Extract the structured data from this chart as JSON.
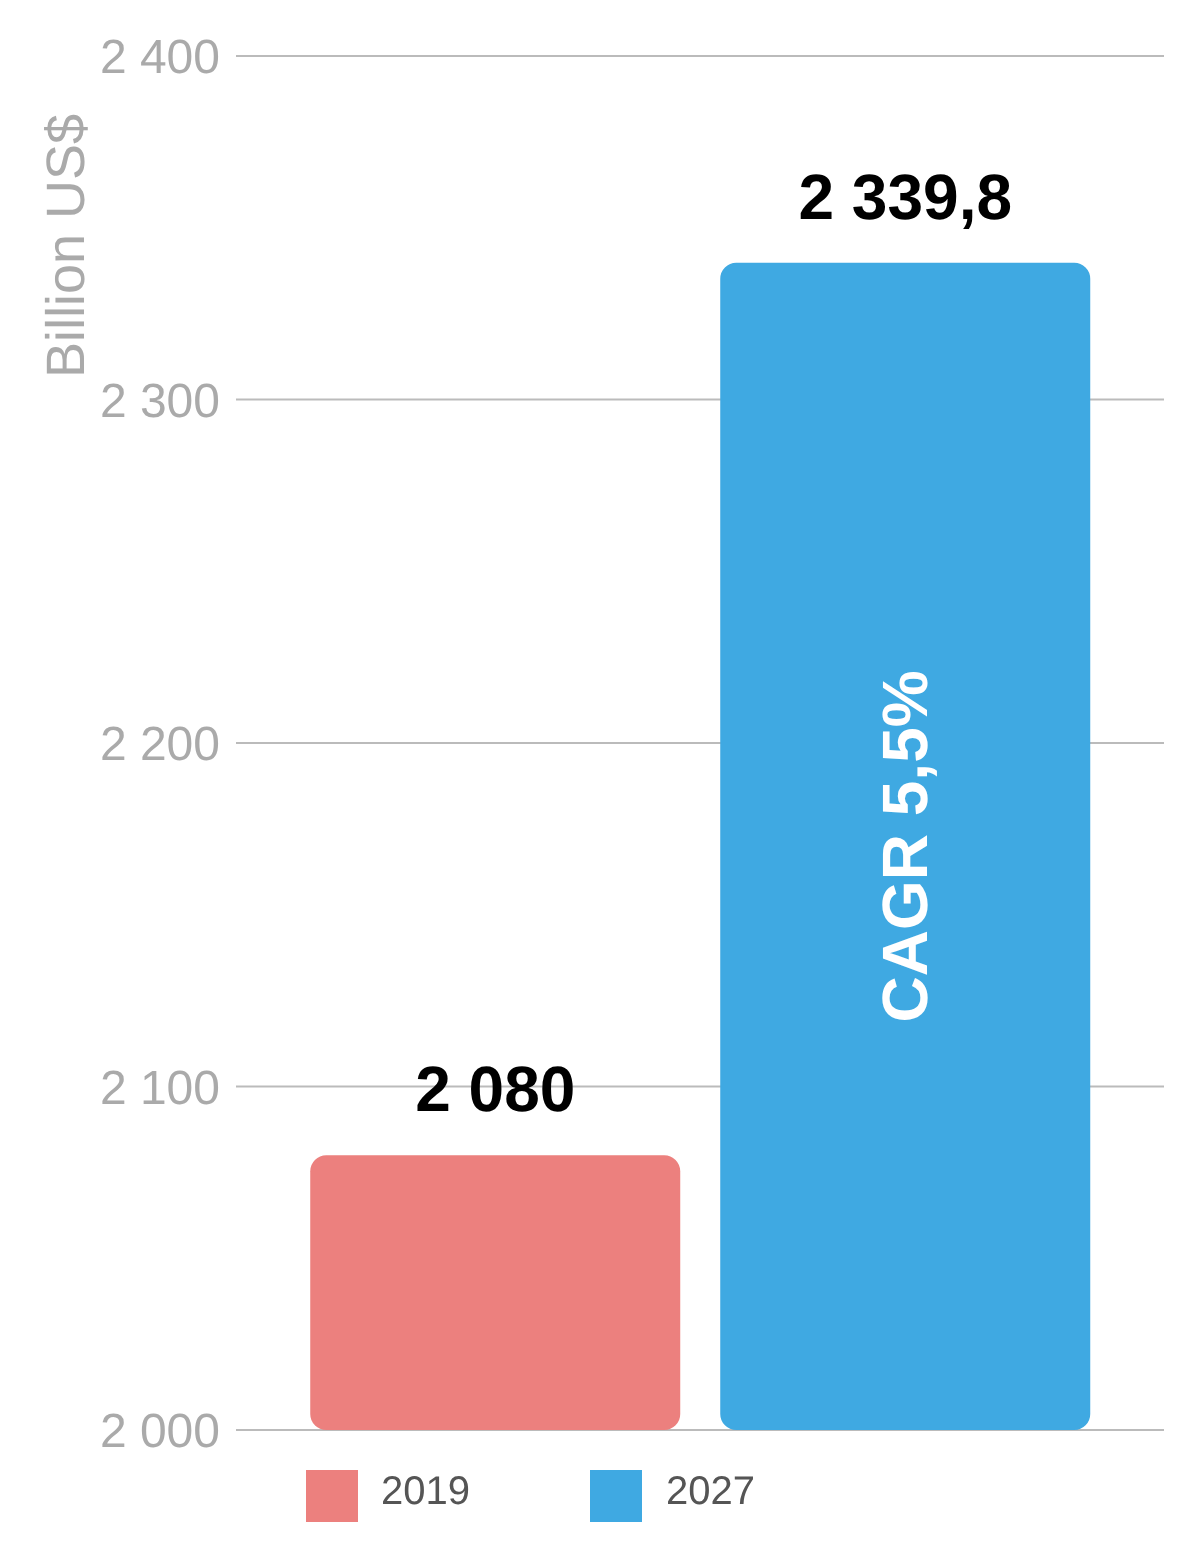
{
  "chart_data": {
    "type": "bar",
    "ylabel": "Billion US$",
    "categories": [
      null
    ],
    "series": [
      {
        "name": "2019",
        "color": "#ec807e",
        "values": [
          2080
        ],
        "value_labels": [
          "2 080"
        ]
      },
      {
        "name": "2027",
        "color": "#3fa9e2",
        "values": [
          2339.8
        ],
        "value_labels": [
          "2 339,8"
        ]
      }
    ],
    "ylim": [
      2000,
      2400
    ],
    "yticks": [
      {
        "value": 2000,
        "label": "2 000"
      },
      {
        "value": 2100,
        "label": "2 100"
      },
      {
        "value": 2200,
        "label": "2 200"
      },
      {
        "value": 2300,
        "label": "2 300"
      },
      {
        "value": 2400,
        "label": "2 400"
      }
    ],
    "grid": "y",
    "legend": "bottom",
    "annotations": [
      "CAGR 5,5%"
    ]
  }
}
